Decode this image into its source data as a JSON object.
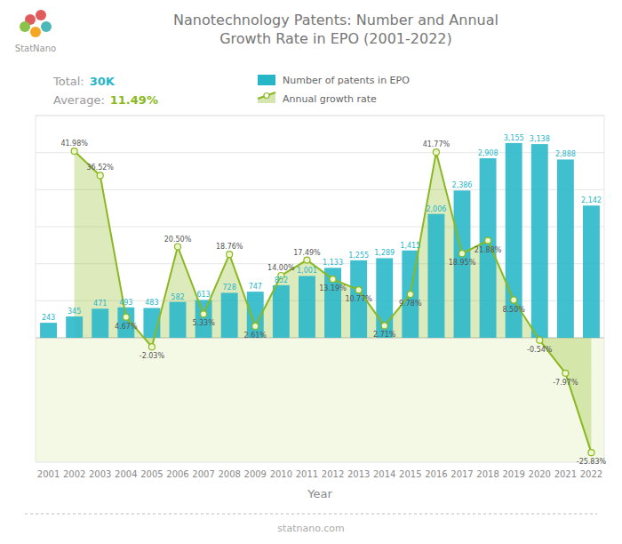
{
  "chart_data": {
    "type": "bar",
    "title": "Nanotechnology Patents: Number and Annual\nGrowth Rate in EPO (2001-2022)",
    "xlabel": "Year",
    "categories": [
      "2001",
      "2002",
      "2003",
      "2004",
      "2005",
      "2006",
      "2007",
      "2008",
      "2009",
      "2010",
      "2011",
      "2012",
      "2013",
      "2014",
      "2015",
      "2016",
      "2017",
      "2018",
      "2019",
      "2020",
      "2021",
      "2022"
    ],
    "series": [
      {
        "name": "Number of patents in EPO",
        "type": "bar",
        "color": "#26b6c8",
        "values": [
          243,
          345,
          471,
          493,
          483,
          582,
          613,
          728,
          747,
          852,
          1001,
          1133,
          1255,
          1289,
          1415,
          2006,
          2386,
          2908,
          3155,
          3138,
          2888,
          2142
        ],
        "value_labels": [
          "243",
          "345",
          "471",
          "493",
          "483",
          "582",
          "613",
          "728",
          "747",
          "852",
          "1,001",
          "1,133",
          "1,255",
          "1,289",
          "1,415",
          "2,006",
          "2,386",
          "2,908",
          "3,155",
          "3,138",
          "2,888",
          "2,142"
        ]
      },
      {
        "name": "Annual growth rate",
        "type": "area",
        "axis": "y2",
        "color": "#8ab820",
        "marker": "circle",
        "values": [
          null,
          41.98,
          36.52,
          4.67,
          -2.03,
          20.5,
          5.33,
          18.76,
          2.61,
          14.0,
          17.49,
          13.19,
          10.77,
          2.71,
          9.78,
          41.77,
          18.95,
          21.88,
          8.5,
          -0.54,
          -7.97,
          -25.83
        ],
        "value_labels": [
          null,
          "41.98%",
          "36.52%",
          "4.67%",
          "-2.03%",
          "20.50%",
          "5.33%",
          "18.76%",
          "2.61%",
          "14.00%",
          "17.49%",
          "13.19%",
          "10.77%",
          "2.71%",
          "9.78%",
          "41.77%",
          "18.95%",
          "21.88%",
          "8.50%",
          "-0.54%",
          "-7.97%",
          "-25.83%"
        ]
      }
    ],
    "ylim": [
      0,
      3600
    ],
    "yticks": [
      0,
      600,
      1200,
      1800,
      2400,
      3000,
      3600
    ],
    "y2lim": [
      -28,
      50
    ],
    "grid": true,
    "tick_labels": "x",
    "data_labels": true,
    "legend": "top",
    "annotations": [
      "Total:",
      "30K",
      "Average:",
      "11.49%",
      "StatNano",
      "statnano.com"
    ]
  }
}
